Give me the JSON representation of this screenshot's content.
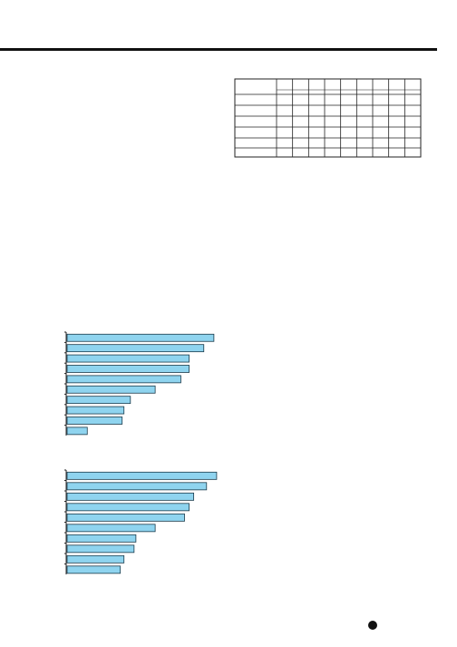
{
  "chart_data": [
    {
      "type": "bar",
      "orientation": "horizontal",
      "categories": [
        null,
        null,
        null,
        null,
        null,
        null,
        null,
        null,
        null,
        null
      ],
      "values": [
        160,
        149,
        133,
        133,
        124,
        96,
        69,
        62,
        60,
        22
      ],
      "xlim": [
        0,
        170
      ],
      "color": "#8fd4ef"
    },
    {
      "type": "bar",
      "orientation": "horizontal",
      "categories": [
        null,
        null,
        null,
        null,
        null,
        null,
        null,
        null,
        null,
        null
      ],
      "values": [
        163,
        152,
        138,
        133,
        128,
        96,
        75,
        73,
        62,
        58
      ],
      "xlim": [
        0,
        170
      ],
      "color": "#8fd4ef"
    }
  ]
}
